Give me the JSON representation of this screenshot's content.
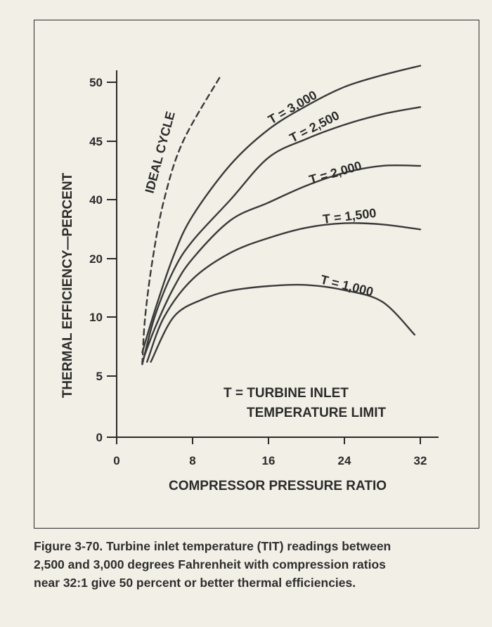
{
  "chart_data": {
    "type": "line",
    "xlabel": "COMPRESSOR PRESSURE RATIO",
    "ylabel": "THERMAL EFFICIENCY—PERCENT",
    "x_ticks": [
      "0",
      "8",
      "16",
      "24",
      "32"
    ],
    "y_ticks": [
      "0",
      "5",
      "10",
      "20",
      "40",
      "45",
      "50"
    ],
    "xlim": [
      0,
      32
    ],
    "y_note": "y axis tick labels are non-uniform as printed",
    "series": [
      {
        "name": "IDEAL CYCLE",
        "style": "dashed",
        "points": [
          [
            2.7,
            6
          ],
          [
            3.0,
            10
          ],
          [
            3.8,
            20
          ],
          [
            5.0,
            40
          ],
          [
            7.0,
            45
          ],
          [
            11.0,
            50.6
          ]
        ]
      },
      {
        "name": "T = 3,000",
        "points": [
          [
            2.7,
            7
          ],
          [
            4,
            11
          ],
          [
            6,
            21
          ],
          [
            8,
            34.5
          ],
          [
            12,
            43
          ],
          [
            16,
            46
          ],
          [
            20,
            48
          ],
          [
            24,
            49.6
          ],
          [
            28,
            50.6
          ],
          [
            32,
            51.4
          ]
        ]
      },
      {
        "name": "T = 2,500",
        "points": [
          [
            2.7,
            6
          ],
          [
            4,
            10
          ],
          [
            6,
            18
          ],
          [
            8,
            26
          ],
          [
            12,
            40
          ],
          [
            16,
            43.6
          ],
          [
            20,
            45.2
          ],
          [
            24,
            46.4
          ],
          [
            28,
            47.3
          ],
          [
            32,
            47.9
          ]
        ]
      },
      {
        "name": "T = 2,000",
        "points": [
          [
            2.7,
            6.2
          ],
          [
            4,
            9
          ],
          [
            6,
            15
          ],
          [
            8,
            20
          ],
          [
            12,
            33
          ],
          [
            16,
            39
          ],
          [
            20,
            41.2
          ],
          [
            24,
            42.3
          ],
          [
            28,
            42.9
          ],
          [
            32,
            42.9
          ]
        ]
      },
      {
        "name": "T = 1,500",
        "points": [
          [
            3.2,
            6.2
          ],
          [
            5,
            10
          ],
          [
            8,
            16.5
          ],
          [
            12,
            22
          ],
          [
            16,
            27
          ],
          [
            20,
            30.5
          ],
          [
            24,
            32
          ],
          [
            28,
            31.6
          ],
          [
            32,
            29.9
          ]
        ]
      },
      {
        "name": "T = 1,000",
        "points": [
          [
            3.6,
            6.2
          ],
          [
            6,
            10
          ],
          [
            9,
            13
          ],
          [
            12,
            14.5
          ],
          [
            16,
            15.3
          ],
          [
            20,
            15.5
          ],
          [
            24,
            14.6
          ],
          [
            28,
            12.6
          ],
          [
            31.4,
            8.5
          ]
        ]
      }
    ],
    "annotation": [
      "T = TURBINE INLET",
      "TEMPERATURE LIMIT"
    ],
    "grid": false,
    "legend": "none"
  },
  "caption": [
    "Figure 3-70. Turbine inlet temperature (TIT) readings between",
    "2,500 and 3,000 degrees Fahrenheit with compression ratios",
    "near 32:1 give 50 percent or better thermal efficiencies."
  ]
}
